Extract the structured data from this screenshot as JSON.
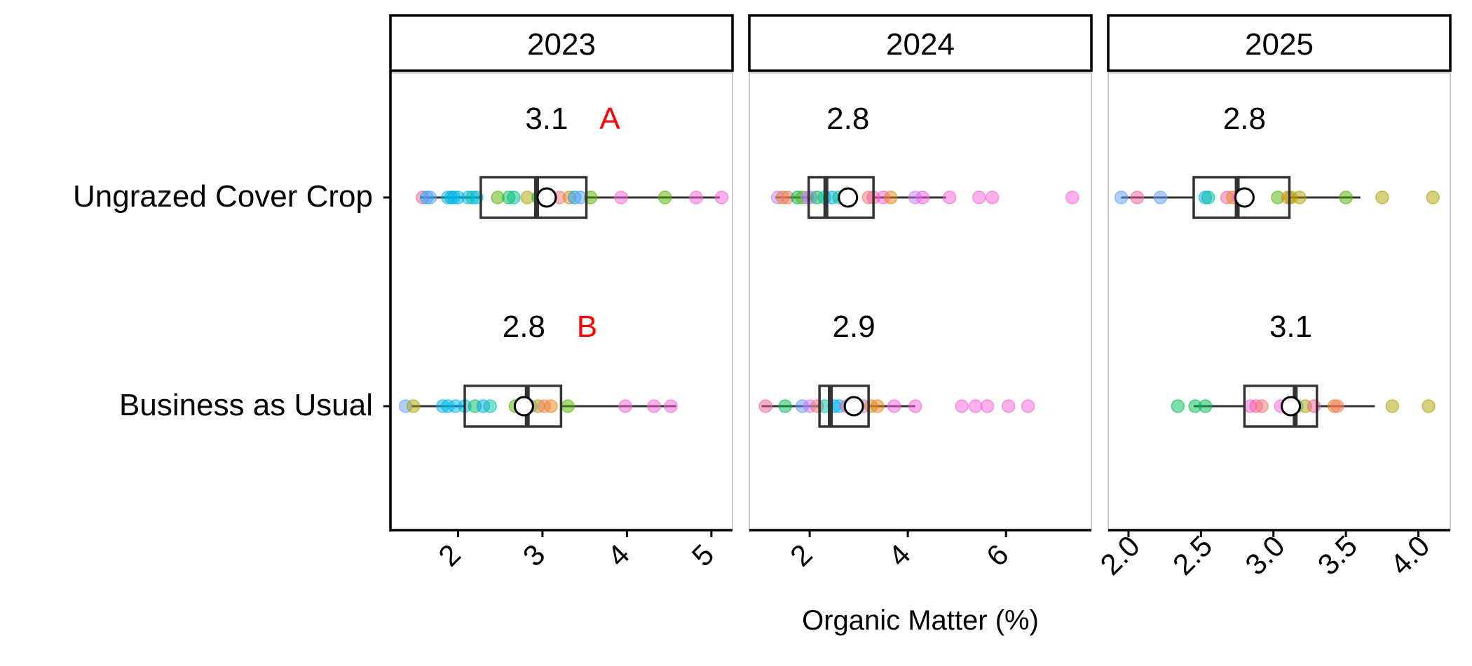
{
  "chart_data": {
    "type": "boxplot",
    "xlabel": "Organic Matter (%)",
    "categories": [
      "Ungrazed Cover Crop",
      "Business as Usual"
    ],
    "panels": [
      {
        "title": "2023",
        "xlim": [
          1.2,
          5.25
        ],
        "xticks": [
          "2",
          "3",
          "4",
          "5"
        ],
        "groups": [
          {
            "category": "Ungrazed Cover Crop",
            "box": {
              "min": 1.55,
              "q1": 2.27,
              "median": 2.93,
              "q3": 3.52,
              "max": 5.1
            },
            "mean": 3.05,
            "mean_label": "3.1",
            "letter": "A",
            "points": [
              {
                "x": 1.58,
                "c": "#f0609e"
              },
              {
                "x": 1.63,
                "c": "#00b8e7"
              },
              {
                "x": 1.67,
                "c": "#619cff"
              },
              {
                "x": 1.88,
                "c": "#00b8e7"
              },
              {
                "x": 1.92,
                "c": "#00b8e7"
              },
              {
                "x": 1.95,
                "c": "#00b8e7"
              },
              {
                "x": 2.0,
                "c": "#00b8e7"
              },
              {
                "x": 2.12,
                "c": "#00b8e7"
              },
              {
                "x": 2.17,
                "c": "#00c1a3"
              },
              {
                "x": 2.22,
                "c": "#00b8e7"
              },
              {
                "x": 2.47,
                "c": "#53b400"
              },
              {
                "x": 2.6,
                "c": "#00bc56"
              },
              {
                "x": 2.66,
                "c": "#00c08b"
              },
              {
                "x": 2.82,
                "c": "#aea200"
              },
              {
                "x": 2.95,
                "c": "#00bc56"
              },
              {
                "x": 3.05,
                "c": "#fb61d7"
              },
              {
                "x": 3.1,
                "c": "#c77cff"
              },
              {
                "x": 3.2,
                "c": "#f8766d"
              },
              {
                "x": 3.32,
                "c": "#e68613"
              },
              {
                "x": 3.38,
                "c": "#00a9ff"
              },
              {
                "x": 3.45,
                "c": "#619cff"
              },
              {
                "x": 3.57,
                "c": "#53b400"
              },
              {
                "x": 3.93,
                "c": "#fb61d7"
              },
              {
                "x": 4.45,
                "c": "#53b400"
              },
              {
                "x": 4.82,
                "c": "#fb61d7"
              },
              {
                "x": 5.12,
                "c": "#fb61d7"
              }
            ]
          },
          {
            "category": "Business as Usual",
            "box": {
              "min": 1.45,
              "q1": 2.08,
              "median": 2.82,
              "q3": 3.22,
              "max": 4.58
            },
            "mean": 2.78,
            "mean_label": "2.8",
            "letter": "B",
            "points": [
              {
                "x": 1.38,
                "c": "#619cff"
              },
              {
                "x": 1.47,
                "c": "#aea200"
              },
              {
                "x": 1.82,
                "c": "#00b8e7"
              },
              {
                "x": 1.88,
                "c": "#00b8e7"
              },
              {
                "x": 1.97,
                "c": "#00b8e7"
              },
              {
                "x": 2.08,
                "c": "#00b8e7"
              },
              {
                "x": 2.2,
                "c": "#00bc56"
              },
              {
                "x": 2.3,
                "c": "#00a9ff"
              },
              {
                "x": 2.38,
                "c": "#00c1a3"
              },
              {
                "x": 2.68,
                "c": "#53b400"
              },
              {
                "x": 2.86,
                "c": "#619cff"
              },
              {
                "x": 2.95,
                "c": "#aea200"
              },
              {
                "x": 3.02,
                "c": "#f8766d"
              },
              {
                "x": 3.1,
                "c": "#e68613"
              },
              {
                "x": 3.3,
                "c": "#53b400"
              },
              {
                "x": 3.98,
                "c": "#fb61d7"
              },
              {
                "x": 4.32,
                "c": "#fb61d7"
              },
              {
                "x": 4.52,
                "c": "#fb61d7"
              }
            ]
          }
        ]
      },
      {
        "title": "2024",
        "xlim": [
          0.77,
          7.74
        ],
        "xticks": [
          "2",
          "4",
          "6"
        ],
        "groups": [
          {
            "category": "Ungrazed Cover Crop",
            "box": {
              "min": 1.3,
              "q1": 1.98,
              "median": 2.33,
              "q3": 3.3,
              "max": 4.78
            },
            "mean": 2.78,
            "mean_label": "2.8",
            "letter": "",
            "points": [
              {
                "x": 1.35,
                "c": "#c77cff"
              },
              {
                "x": 1.45,
                "c": "#e68613"
              },
              {
                "x": 1.55,
                "c": "#f8766d"
              },
              {
                "x": 1.75,
                "c": "#00bc56"
              },
              {
                "x": 1.85,
                "c": "#53b400"
              },
              {
                "x": 1.95,
                "c": "#c77cff"
              },
              {
                "x": 2.02,
                "c": "#c77cff"
              },
              {
                "x": 2.15,
                "c": "#00bc56"
              },
              {
                "x": 2.3,
                "c": "#00c1a3"
              },
              {
                "x": 2.45,
                "c": "#00a9ff"
              },
              {
                "x": 2.6,
                "c": "#00c08b"
              },
              {
                "x": 2.72,
                "c": "#619cff"
              },
              {
                "x": 2.85,
                "c": "#e68613"
              },
              {
                "x": 3.2,
                "c": "#f8766d"
              },
              {
                "x": 3.3,
                "c": "#f0609e"
              },
              {
                "x": 3.5,
                "c": "#fb61d7"
              },
              {
                "x": 3.65,
                "c": "#e68613"
              },
              {
                "x": 4.15,
                "c": "#c77cff"
              },
              {
                "x": 4.3,
                "c": "#fb61d7"
              },
              {
                "x": 4.85,
                "c": "#fb61d7"
              },
              {
                "x": 5.45,
                "c": "#fb61d7"
              },
              {
                "x": 5.72,
                "c": "#fb61d7"
              },
              {
                "x": 7.35,
                "c": "#fb61d7"
              }
            ]
          },
          {
            "category": "Business as Usual",
            "box": {
              "min": 1.02,
              "q1": 2.2,
              "median": 2.42,
              "q3": 3.2,
              "max": 4.15
            },
            "mean": 2.9,
            "mean_label": "2.9",
            "letter": "",
            "points": [
              {
                "x": 1.1,
                "c": "#f0609e"
              },
              {
                "x": 1.5,
                "c": "#00bc56"
              },
              {
                "x": 1.85,
                "c": "#619cff"
              },
              {
                "x": 2.0,
                "c": "#c77cff"
              },
              {
                "x": 2.15,
                "c": "#f8766d"
              },
              {
                "x": 2.3,
                "c": "#00c1a3"
              },
              {
                "x": 2.5,
                "c": "#00a9ff"
              },
              {
                "x": 2.6,
                "c": "#00b8e7"
              },
              {
                "x": 2.75,
                "c": "#f0609e"
              },
              {
                "x": 2.9,
                "c": "#e68613"
              },
              {
                "x": 3.1,
                "c": "#c77cff"
              },
              {
                "x": 3.25,
                "c": "#e68613"
              },
              {
                "x": 3.38,
                "c": "#e68613"
              },
              {
                "x": 3.72,
                "c": "#fb61d7"
              },
              {
                "x": 4.15,
                "c": "#fb61d7"
              },
              {
                "x": 5.1,
                "c": "#fb61d7"
              },
              {
                "x": 5.38,
                "c": "#fb61d7"
              },
              {
                "x": 5.62,
                "c": "#fb61d7"
              },
              {
                "x": 6.05,
                "c": "#fb61d7"
              },
              {
                "x": 6.45,
                "c": "#fb61d7"
              }
            ]
          }
        ]
      },
      {
        "title": "2025",
        "xlim": [
          1.86,
          4.22
        ],
        "xticks": [
          "2.0",
          "2.5",
          "3.0",
          "3.5",
          "4.0"
        ],
        "groups": [
          {
            "category": "Ungrazed Cover Crop",
            "box": {
              "min": 1.95,
              "q1": 2.45,
              "median": 2.75,
              "q3": 3.11,
              "max": 3.6
            },
            "mean": 2.8,
            "mean_label": "2.8",
            "letter": "",
            "points": [
              {
                "x": 1.95,
                "c": "#619cff"
              },
              {
                "x": 2.06,
                "c": "#f0609e"
              },
              {
                "x": 2.22,
                "c": "#619cff"
              },
              {
                "x": 2.53,
                "c": "#00a9ff"
              },
              {
                "x": 2.55,
                "c": "#00c08b"
              },
              {
                "x": 2.68,
                "c": "#f0609e"
              },
              {
                "x": 2.72,
                "c": "#e68613"
              },
              {
                "x": 2.76,
                "c": "#fb61d7"
              },
              {
                "x": 2.8,
                "c": "#f8766d"
              },
              {
                "x": 3.03,
                "c": "#53b400"
              },
              {
                "x": 3.1,
                "c": "#e68613"
              },
              {
                "x": 3.12,
                "c": "#aea200"
              },
              {
                "x": 3.18,
                "c": "#aea200"
              },
              {
                "x": 3.5,
                "c": "#53b400"
              },
              {
                "x": 3.75,
                "c": "#aea200"
              },
              {
                "x": 4.1,
                "c": "#aea200"
              }
            ]
          },
          {
            "category": "Business as Usual",
            "box": {
              "min": 2.45,
              "q1": 2.8,
              "median": 3.15,
              "q3": 3.3,
              "max": 3.7
            },
            "mean": 3.12,
            "mean_label": "3.1",
            "letter": "",
            "points": [
              {
                "x": 2.34,
                "c": "#00bc56"
              },
              {
                "x": 2.46,
                "c": "#00bc56"
              },
              {
                "x": 2.53,
                "c": "#00bc56"
              },
              {
                "x": 2.84,
                "c": "#fb61d7"
              },
              {
                "x": 2.88,
                "c": "#f0609e"
              },
              {
                "x": 2.92,
                "c": "#f8766d"
              },
              {
                "x": 3.05,
                "c": "#fb61d7"
              },
              {
                "x": 3.12,
                "c": "#619cff"
              },
              {
                "x": 3.16,
                "c": "#00a9ff"
              },
              {
                "x": 3.22,
                "c": "#aea200"
              },
              {
                "x": 3.28,
                "c": "#f0609e"
              },
              {
                "x": 3.42,
                "c": "#e68613"
              },
              {
                "x": 3.44,
                "c": "#f8766d"
              },
              {
                "x": 3.82,
                "c": "#aea200"
              },
              {
                "x": 4.07,
                "c": "#aea200"
              }
            ]
          }
        ]
      }
    ],
    "colors": {
      "letter": "#ff0000",
      "box_stroke": "#333333",
      "axis": "#000000",
      "grid": "none"
    }
  }
}
